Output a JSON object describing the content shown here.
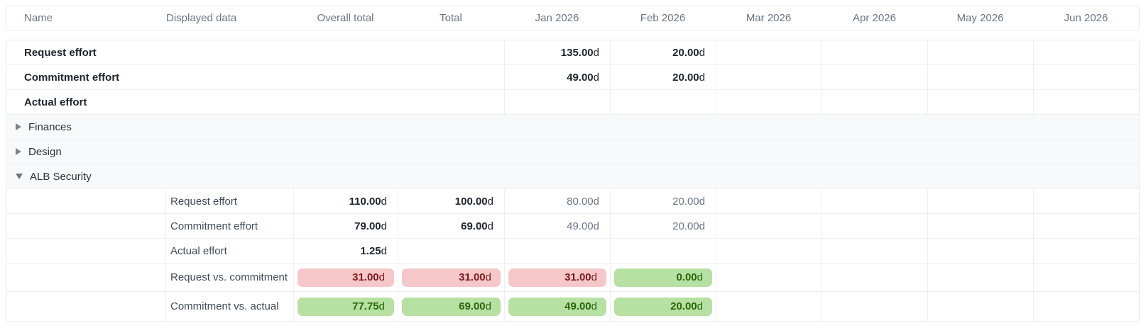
{
  "table": {
    "columns": [
      "Name",
      "Displayed data",
      "Overall total",
      "Total",
      "Jan 2026",
      "Feb 2026",
      "Mar 2026",
      "Apr 2026",
      "May 2026",
      "Jun 2026"
    ]
  },
  "rows": [
    {
      "kind": "top",
      "name": "Request effort",
      "cells": {
        "jan": {
          "value": "135.00",
          "unit": "d"
        },
        "feb": {
          "value": "20.00",
          "unit": "d"
        }
      }
    },
    {
      "kind": "top",
      "name": "Commitment effort",
      "cells": {
        "jan": {
          "value": "49.00",
          "unit": "d"
        },
        "feb": {
          "value": "20.00",
          "unit": "d"
        }
      }
    },
    {
      "kind": "top",
      "name": "Actual effort",
      "cells": {}
    },
    {
      "kind": "group",
      "name": "Finances",
      "state": "collapsed"
    },
    {
      "kind": "group",
      "name": "Design",
      "state": "collapsed"
    },
    {
      "kind": "group",
      "name": "ALB Security",
      "state": "expanded"
    },
    {
      "kind": "sub",
      "displayed_data": "Request effort",
      "cells": {
        "overall": {
          "value": "110.00",
          "unit": "d"
        },
        "total": {
          "value": "100.00",
          "unit": "d"
        },
        "jan": {
          "value": "80.00",
          "unit": "d"
        },
        "feb": {
          "value": "20.00",
          "unit": "d"
        }
      }
    },
    {
      "kind": "sub",
      "displayed_data": "Commitment effort",
      "cells": {
        "overall": {
          "value": "79.00",
          "unit": "d"
        },
        "total": {
          "value": "69.00",
          "unit": "d"
        },
        "jan": {
          "value": "49.00",
          "unit": "d"
        },
        "feb": {
          "value": "20.00",
          "unit": "d"
        }
      }
    },
    {
      "kind": "sub",
      "displayed_data": "Actual effort",
      "cells": {
        "overall": {
          "value": "1.25",
          "unit": "d"
        }
      }
    },
    {
      "kind": "sub",
      "displayed_data": "Request vs. commitment",
      "cells": {
        "overall": {
          "value": "31.00",
          "unit": "d",
          "status": "negative"
        },
        "total": {
          "value": "31.00",
          "unit": "d",
          "status": "negative"
        },
        "jan": {
          "value": "31.00",
          "unit": "d",
          "status": "negative"
        },
        "feb": {
          "value": "0.00",
          "unit": "d",
          "status": "positive"
        }
      }
    },
    {
      "kind": "sub",
      "displayed_data": "Commitment vs. actual",
      "cells": {
        "overall": {
          "value": "77.75",
          "unit": "d",
          "status": "positive"
        },
        "total": {
          "value": "69.00",
          "unit": "d",
          "status": "positive"
        },
        "jan": {
          "value": "49.00",
          "unit": "d",
          "status": "positive"
        },
        "feb": {
          "value": "20.00",
          "unit": "d",
          "status": "positive"
        }
      }
    }
  ],
  "colors": {
    "pill_negative_bg": "#f6c7c9",
    "pill_negative_text": "#7a191e",
    "pill_positive_bg": "#b7e0a3",
    "pill_positive_text": "#2a650b",
    "header_text": "#6b7583",
    "text_dark": "#1d242c",
    "text_gray": "#6b7684",
    "group_row_bg": "#f8f9fb",
    "border": "#e7eaee"
  }
}
